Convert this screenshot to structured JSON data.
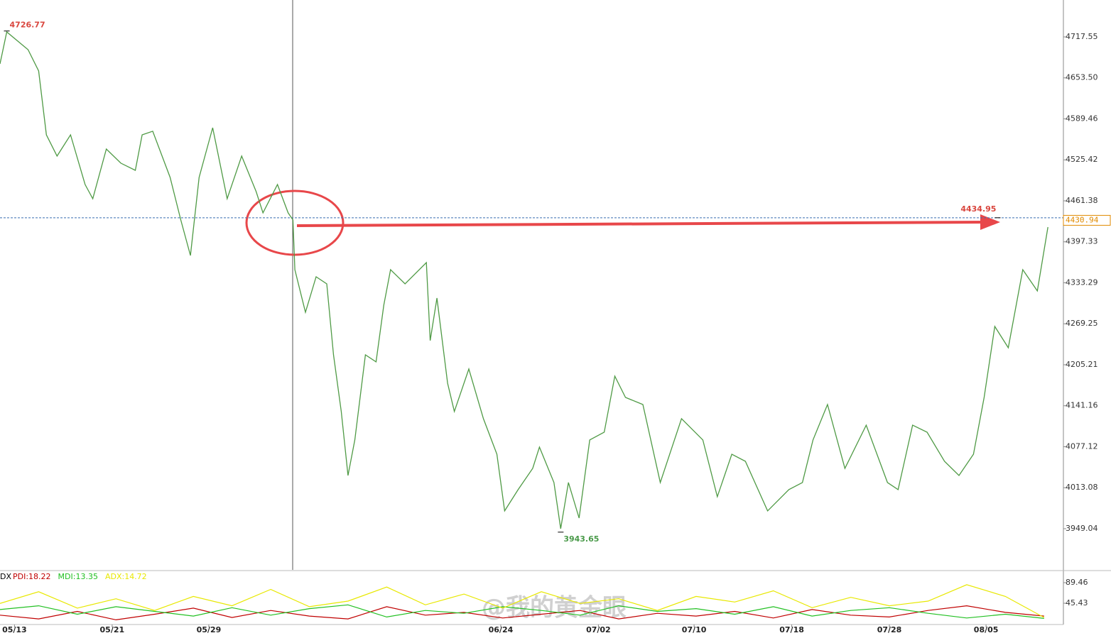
{
  "chart_data": [
    {
      "type": "line",
      "color": "#4f9a45",
      "x": [
        0.0,
        0.7,
        2.9,
        4.0,
        4.8,
        5.9,
        7.3,
        8.8,
        9.6,
        11.0,
        12.5,
        14.0,
        14.7,
        15.8,
        17.6,
        18.7,
        19.7,
        20.6,
        22.0,
        23.5,
        25.0,
        26.5,
        27.2,
        28.7,
        29.8,
        30.3,
        30.5,
        31.6,
        32.7,
        33.8,
        34.5,
        35.3,
        36.0,
        36.7,
        37.8,
        38.9,
        39.7,
        40.4,
        41.9,
        44.1,
        44.5,
        45.2,
        46.3,
        47.0,
        48.5,
        50.0,
        51.4,
        52.2,
        53.6,
        55.1,
        55.8,
        57.3,
        58.0,
        58.8,
        59.9,
        61.0,
        62.5,
        63.6,
        64.7,
        66.5,
        68.3,
        70.5,
        72.7,
        74.2,
        75.7,
        77.1,
        79.4,
        81.6,
        83.0,
        84.1,
        85.6,
        87.4,
        89.6,
        91.8,
        92.9,
        94.4,
        95.9,
        97.7,
        99.2,
        100.7,
        101.8,
        102.9,
        104.3,
        105.8,
        107.3,
        108.4
      ],
      "values": [
        4675.4,
        4725.3,
        4697.6,
        4664.3,
        4564.5,
        4531.3,
        4564.5,
        4486.9,
        4464.7,
        4542.3,
        4520.2,
        4509.1,
        4564.5,
        4570.1,
        4498.0,
        4431.5,
        4376.0,
        4498.0,
        4575.6,
        4464.7,
        4531.3,
        4475.8,
        4442.6,
        4486.9,
        4442.6,
        4431.5,
        4353.8,
        4287.3,
        4342.7,
        4331.6,
        4220.7,
        4132.2,
        4032.2,
        4087.7,
        4220.7,
        4209.7,
        4298.4,
        4353.8,
        4331.6,
        4364.9,
        4243.0,
        4309.4,
        4176.4,
        4132.2,
        4198.6,
        4121.0,
        4065.5,
        3976.8,
        4010.1,
        4043.3,
        4076.6,
        4021.2,
        3949.0,
        4021.2,
        3965.7,
        4087.7,
        4099.8,
        4187.5,
        4154.2,
        4143.1,
        4021.2,
        4121.0,
        4087.7,
        3999.0,
        4065.5,
        4054.4,
        3976.8,
        4010.1,
        4021.2,
        4087.7,
        4143.1,
        4043.3,
        4110.8,
        4021.2,
        4010.1,
        4110.8,
        4099.8,
        4054.4,
        4032.2,
        4065.5,
        4154.2,
        4265.1,
        4231.8,
        4353.8,
        4320.6,
        4420.3
      ],
      "xlim": [
        0,
        110
      ],
      "ylim": [
        3884.7,
        4775.2
      ],
      "yticks": [
        4717.55,
        {
          "value": 4653.5,
          "label": "4653.50"
        },
        4589.46,
        4525.42,
        4461.38,
        4397.33,
        4333.29,
        4269.25,
        4205.21,
        4141.16,
        4077.12,
        4013.08,
        3949.04
      ],
      "xticks": [
        {
          "value": 1.5,
          "label": "05/13"
        },
        {
          "value": 11.6,
          "label": "05/21"
        },
        {
          "value": 21.6,
          "label": "05/29"
        },
        {
          "value": 51.8,
          "label": "06/24"
        },
        {
          "value": 61.9,
          "label": "07/02"
        },
        {
          "value": 71.8,
          "label": "07/10"
        },
        {
          "value": 81.9,
          "label": "07/18"
        },
        {
          "value": 92,
          "label": "07/28"
        },
        {
          "value": 102,
          "label": "08/05"
        }
      ],
      "annotations": [
        {
          "label": "4726.77",
          "value": 4726.77,
          "x": 0.7,
          "color": "#d9463e"
        },
        {
          "label": "3943.65",
          "value": 3943.65,
          "x": 58.0,
          "color": "#4a9a4a"
        },
        {
          "label": "4434.95",
          "value": 4434.95,
          "x": 103.2,
          "color": "#d9463e"
        },
        {
          "label": "4430.94",
          "value": 4430.94,
          "x": 110,
          "color": "#e08a00"
        }
      ],
      "reference_line": {
        "value": 4434.95,
        "color": "#3a6fb0"
      },
      "watermark": "@我的黄金眼"
    },
    {
      "type": "line",
      "title": "DX",
      "xlim": [
        0,
        110
      ],
      "ylim": [
        0,
        112.2
      ],
      "yticks": [
        89.46,
        45.43
      ],
      "x": [
        0,
        4,
        8,
        12,
        16,
        20,
        24,
        28,
        32,
        36,
        40,
        44,
        48,
        52,
        56,
        60,
        64,
        68,
        72,
        76,
        80,
        84,
        88,
        92,
        96,
        100,
        104,
        108
      ],
      "series": [
        {
          "name": "PDI:18.22",
          "color": "#c00000",
          "values": [
            20,
            12,
            28,
            10,
            22,
            35,
            15,
            30,
            18,
            12,
            38,
            20,
            26,
            14,
            22,
            30,
            12,
            24,
            18,
            28,
            14,
            32,
            20,
            16,
            30,
            40,
            26,
            18
          ]
        },
        {
          "name": "MDI:13.35",
          "color": "#22c022",
          "values": [
            32,
            40,
            22,
            38,
            28,
            18,
            36,
            20,
            34,
            42,
            16,
            30,
            24,
            38,
            30,
            20,
            40,
            28,
            34,
            22,
            38,
            18,
            30,
            36,
            24,
            14,
            22,
            13
          ]
        },
        {
          "name": "ADX:14.72",
          "color": "#e8e800",
          "values": [
            45,
            70,
            35,
            55,
            30,
            60,
            40,
            75,
            38,
            50,
            80,
            42,
            65,
            35,
            70,
            45,
            55,
            30,
            60,
            48,
            72,
            36,
            58,
            40,
            50,
            85,
            60,
            15
          ]
        }
      ]
    }
  ]
}
